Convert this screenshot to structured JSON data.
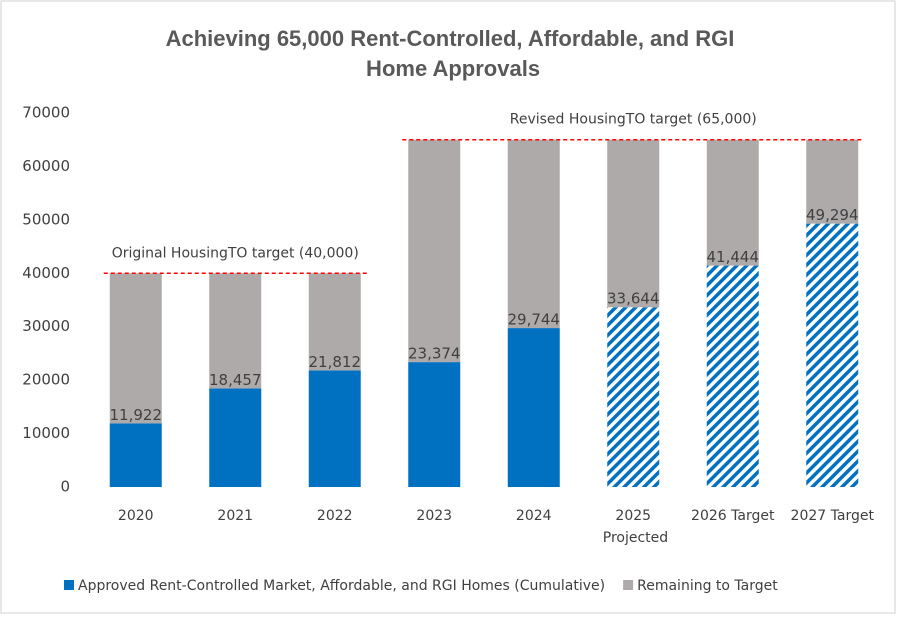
{
  "chart_data": {
    "type": "stacked_bar",
    "title": "Achieving 65,000 Rent-Controlled, Affordable, and RGI Home Approvals",
    "categories": [
      "2020",
      "2021",
      "2022",
      "2023",
      "2024",
      "2025\nProjected",
      "2026 Target",
      "2027 Target"
    ],
    "series": [
      {
        "name": "Approved Rent-Controlled Market, Affordable, and RGI Homes (Cumulative)",
        "color": "#0070c0",
        "values": [
          11922,
          18457,
          21812,
          23374,
          29744,
          33644,
          41444,
          49294
        ],
        "value_labels": [
          "11,922",
          "18,457",
          "21,812",
          "23,374",
          "29,744",
          "33,644",
          "41,444",
          "49,294"
        ],
        "hatched": [
          false,
          false,
          false,
          false,
          false,
          true,
          true,
          true
        ]
      },
      {
        "name": "Remaining to Target",
        "color": "#aeaaaa",
        "values": [
          28078,
          21543,
          18188,
          41626,
          35256,
          31356,
          23556,
          15706
        ]
      }
    ],
    "annotations": [
      {
        "text": "Original HousingTO target (40,000)",
        "value": 40000,
        "from": 0,
        "to": 2,
        "color": "#ff0000"
      },
      {
        "text": "Revised HousingTO target (65,000)",
        "value": 65000,
        "from": 3,
        "to": 7,
        "color": "#ff0000"
      }
    ],
    "ylim": [
      0,
      70000
    ],
    "yticks": [
      0,
      10000,
      20000,
      30000,
      40000,
      50000,
      60000,
      70000
    ],
    "legend": "bottom"
  }
}
